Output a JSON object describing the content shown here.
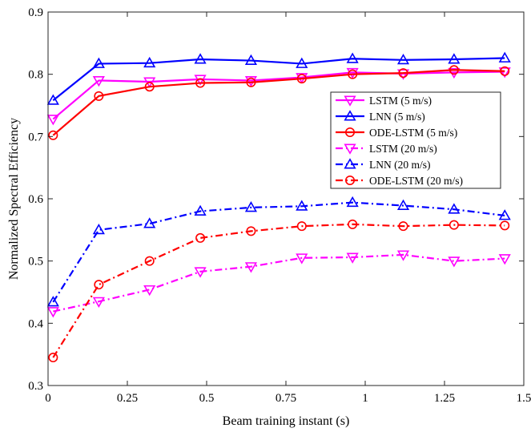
{
  "chart_data": {
    "type": "line",
    "title": "",
    "xlabel": "Beam training instant (s)",
    "ylabel": "Normalized Spectral Efficiency",
    "xlim": [
      0,
      1.5
    ],
    "ylim": [
      0.3,
      0.9
    ],
    "xticks": [
      0,
      0.25,
      0.5,
      0.75,
      1,
      1.25,
      1.5
    ],
    "xtick_labels": [
      "0",
      "0.25",
      "0.5",
      "0.75",
      "1",
      "1.25",
      "1.5"
    ],
    "yticks": [
      0.3,
      0.4,
      0.5,
      0.6,
      0.7,
      0.8,
      0.9
    ],
    "ytick_labels": [
      "0.3",
      "0.4",
      "0.5",
      "0.6",
      "0.7",
      "0.8",
      "0.9"
    ],
    "grid": false,
    "legend_position": "right",
    "x": [
      0.016,
      0.16,
      0.32,
      0.48,
      0.64,
      0.8,
      0.96,
      1.12,
      1.28,
      1.44
    ],
    "series": [
      {
        "name": "LSTM (5 m/s)",
        "color": "#ff00ff",
        "line": "solid",
        "marker": "triangle-down",
        "values": [
          0.728,
          0.79,
          0.788,
          0.792,
          0.79,
          0.795,
          0.803,
          0.801,
          0.803,
          0.804
        ]
      },
      {
        "name": "LNN (5 m/s)",
        "color": "#0000ff",
        "line": "solid",
        "marker": "triangle-up",
        "values": [
          0.758,
          0.817,
          0.818,
          0.824,
          0.822,
          0.817,
          0.825,
          0.823,
          0.824,
          0.826
        ]
      },
      {
        "name": "ODE-LSTM (5 m/s)",
        "color": "#ff0000",
        "line": "solid",
        "marker": "circle",
        "values": [
          0.702,
          0.765,
          0.78,
          0.786,
          0.787,
          0.793,
          0.8,
          0.802,
          0.807,
          0.805
        ]
      },
      {
        "name": "LSTM (20 m/s)",
        "color": "#ff00ff",
        "line": "dashdot",
        "marker": "triangle-down",
        "values": [
          0.419,
          0.435,
          0.454,
          0.483,
          0.491,
          0.505,
          0.506,
          0.51,
          0.5,
          0.504
        ]
      },
      {
        "name": "LNN (20 m/s)",
        "color": "#0000ff",
        "line": "dashdot",
        "marker": "triangle-up",
        "values": [
          0.434,
          0.55,
          0.56,
          0.58,
          0.586,
          0.588,
          0.594,
          0.589,
          0.583,
          0.573
        ]
      },
      {
        "name": "ODE-LSTM (20 m/s)",
        "color": "#ff0000",
        "line": "dashdot",
        "marker": "circle",
        "values": [
          0.345,
          0.462,
          0.5,
          0.537,
          0.548,
          0.556,
          0.559,
          0.556,
          0.558,
          0.557
        ]
      }
    ]
  }
}
